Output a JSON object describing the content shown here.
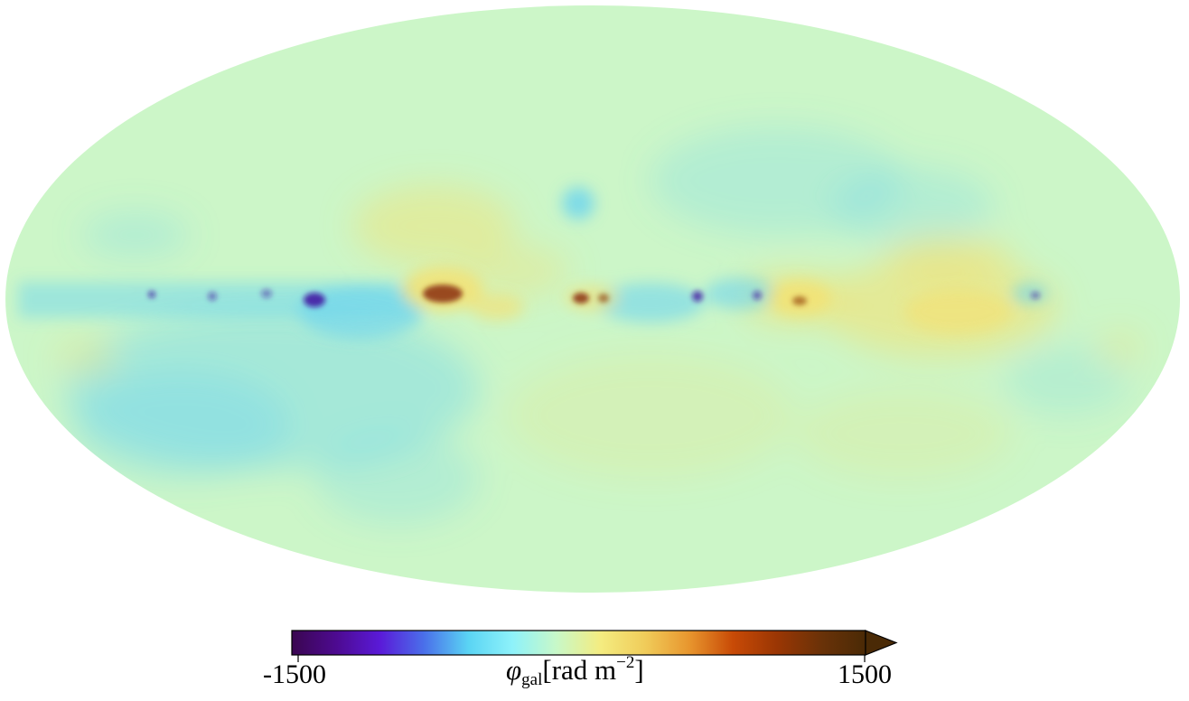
{
  "colorbar": {
    "min_label": "-1500",
    "max_label": "1500",
    "vmin": -1500,
    "vmax": 1500,
    "extend": "max",
    "label_symbol": "φ",
    "label_subscript": "gal",
    "label_unit_open": "[rad m",
    "label_superscript": "−2",
    "label_unit_close": "]",
    "colors": [
      "#3a0650",
      "#4d0a90",
      "#5a1ad8",
      "#4a70ea",
      "#5ad4f4",
      "#8ef2fa",
      "#c8f8c8",
      "#f4ec80",
      "#f0cc5a",
      "#e8962e",
      "#c84a06",
      "#9a3604",
      "#6a3208",
      "#4a2a06"
    ]
  },
  "map": {
    "projection": "mollweide",
    "background_color": "#ccf6c8",
    "positive_color": "#f6e06e",
    "negative_color": "#66d2f2",
    "strong_positive_color": "#8a3008",
    "strong_negative_color": "#4010a0"
  }
}
